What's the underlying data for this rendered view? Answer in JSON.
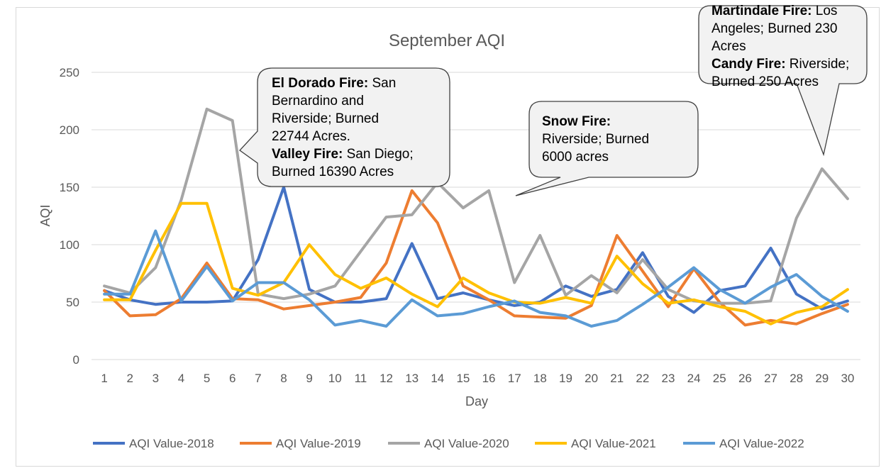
{
  "chart_data": {
    "type": "line",
    "title": "September AQI",
    "xlabel": "Day",
    "ylabel": "AQI",
    "ylim": [
      0,
      250
    ],
    "yticks": [
      0,
      50,
      100,
      150,
      200,
      250
    ],
    "grid": true,
    "legend_position": "bottom",
    "categories": [
      "1",
      "2",
      "3",
      "4",
      "5",
      "6",
      "7",
      "8",
      "9",
      "10",
      "11",
      "12",
      "13",
      "14",
      "15",
      "16",
      "17",
      "18",
      "19",
      "20",
      "21",
      "22",
      "23",
      "24",
      "25",
      "26",
      "27",
      "28",
      "29",
      "30"
    ],
    "series": [
      {
        "name": "AQI Value-2018",
        "color": "#4472c4",
        "values": [
          60,
          52,
          48,
          50,
          50,
          51,
          87,
          150,
          61,
          50,
          50,
          53,
          101,
          53,
          58,
          52,
          47,
          50,
          64,
          55,
          61,
          93,
          55,
          41,
          60,
          64,
          97,
          57,
          44,
          51
        ]
      },
      {
        "name": "AQI Value-2019",
        "color": "#ed7d31",
        "values": [
          60,
          38,
          39,
          53,
          84,
          53,
          52,
          44,
          47,
          50,
          54,
          84,
          147,
          119,
          64,
          52,
          38,
          37,
          36,
          47,
          108,
          77,
          46,
          79,
          50,
          30,
          34,
          31,
          40,
          48
        ]
      },
      {
        "name": "AQI Value-2020",
        "color": "#a5a5a5",
        "values": [
          64,
          58,
          80,
          139,
          218,
          208,
          57,
          53,
          57,
          64,
          94,
          124,
          126,
          154,
          132,
          147,
          67,
          108,
          56,
          73,
          58,
          87,
          61,
          51,
          49,
          49,
          51,
          123,
          166,
          140
        ]
      },
      {
        "name": "AQI Value-2021",
        "color": "#ffc000",
        "values": [
          52,
          52,
          95,
          136,
          136,
          62,
          56,
          67,
          100,
          74,
          62,
          71,
          57,
          46,
          71,
          58,
          50,
          49,
          54,
          49,
          90,
          66,
          49,
          52,
          46,
          42,
          31,
          41,
          46,
          61
        ]
      },
      {
        "name": "AQI Value-2022",
        "color": "#5b9bd5",
        "values": [
          57,
          57,
          112,
          51,
          81,
          51,
          67,
          67,
          52,
          30,
          34,
          29,
          52,
          38,
          40,
          46,
          51,
          41,
          38,
          29,
          34,
          48,
          63,
          80,
          61,
          49,
          63,
          74,
          55,
          42
        ]
      }
    ]
  },
  "annotations": [
    {
      "id": "el-dorado",
      "lines": [
        [
          {
            "b": "El Dorado Fire:"
          },
          {
            "t": " San"
          }
        ],
        [
          {
            "t": "Bernardino and"
          }
        ],
        [
          {
            "t": "Riverside; Burned"
          }
        ],
        [
          {
            "t": "22744 Acres."
          }
        ],
        [
          {
            "b": "Valley Fire:"
          },
          {
            "t": " San Diego;"
          }
        ],
        [
          {
            "t": "Burned 16390 Acres"
          }
        ]
      ]
    },
    {
      "id": "snow",
      "lines": [
        [
          {
            "b": "Snow Fire:"
          }
        ],
        [
          {
            "t": "Riverside; Burned"
          }
        ],
        [
          {
            "t": "6000 acres"
          }
        ]
      ]
    },
    {
      "id": "martindale",
      "lines": [
        [
          {
            "b": "Martindale Fire:"
          },
          {
            "t": " Los"
          }
        ],
        [
          {
            "t": "Angeles; Burned 230"
          }
        ],
        [
          {
            "t": "Acres"
          }
        ],
        [
          {
            "b": "Candy Fire:"
          },
          {
            "t": " Riverside;"
          }
        ],
        [
          {
            "t": "Burned 250 Acres"
          }
        ]
      ]
    }
  ]
}
